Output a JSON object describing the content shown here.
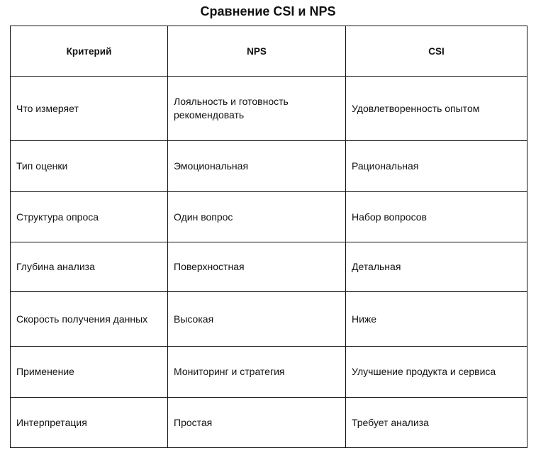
{
  "title": "Сравнение CSI и NPS",
  "headers": [
    "Критерий",
    "NPS",
    "CSI"
  ],
  "rows": [
    [
      "Что измеряет",
      "Лояльность и готовность рекомендовать",
      "Удовлетворенность опытом"
    ],
    [
      "Тип оценки",
      "Эмоциональная",
      "Рациональная"
    ],
    [
      "Структура опроса",
      "Один вопрос",
      "Набор вопросов"
    ],
    [
      "Глубина анализа",
      "Поверхностная",
      "Детальная"
    ],
    [
      "Скорость получения данных",
      "Высокая",
      "Ниже"
    ],
    [
      "Применение",
      "Мониторинг и стратегия",
      "Улучшение продукта и сервиса"
    ],
    [
      "Интерпретация",
      "Простая",
      "Требует анализа"
    ]
  ]
}
